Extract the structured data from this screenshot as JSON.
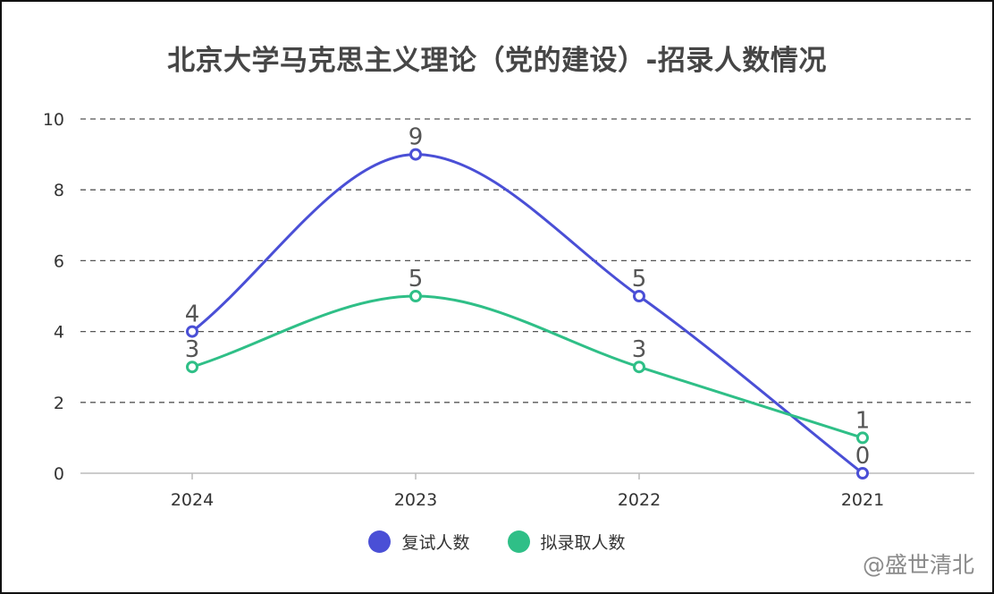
{
  "chart_data": {
    "type": "line",
    "title": "北京大学马克思主义理论（党的建设）-招录人数情况",
    "categories": [
      "2024",
      "2023",
      "2022",
      "2021"
    ],
    "series": [
      {
        "name": "复试人数",
        "values": [
          4,
          9,
          5,
          0
        ],
        "color": "#4a4fd6"
      },
      {
        "name": "拟录取人数",
        "values": [
          3,
          5,
          3,
          1
        ],
        "color": "#2fbf87"
      }
    ],
    "ylim": [
      0,
      10
    ],
    "yticks": [
      "0",
      "2",
      "4",
      "6",
      "8",
      "10"
    ],
    "smooth": true,
    "grid": "dashed horizontal",
    "legend": "bottom-center",
    "data_labels": true
  },
  "watermark": {
    "text": "@盛世清北",
    "icon": "paw-icon"
  }
}
